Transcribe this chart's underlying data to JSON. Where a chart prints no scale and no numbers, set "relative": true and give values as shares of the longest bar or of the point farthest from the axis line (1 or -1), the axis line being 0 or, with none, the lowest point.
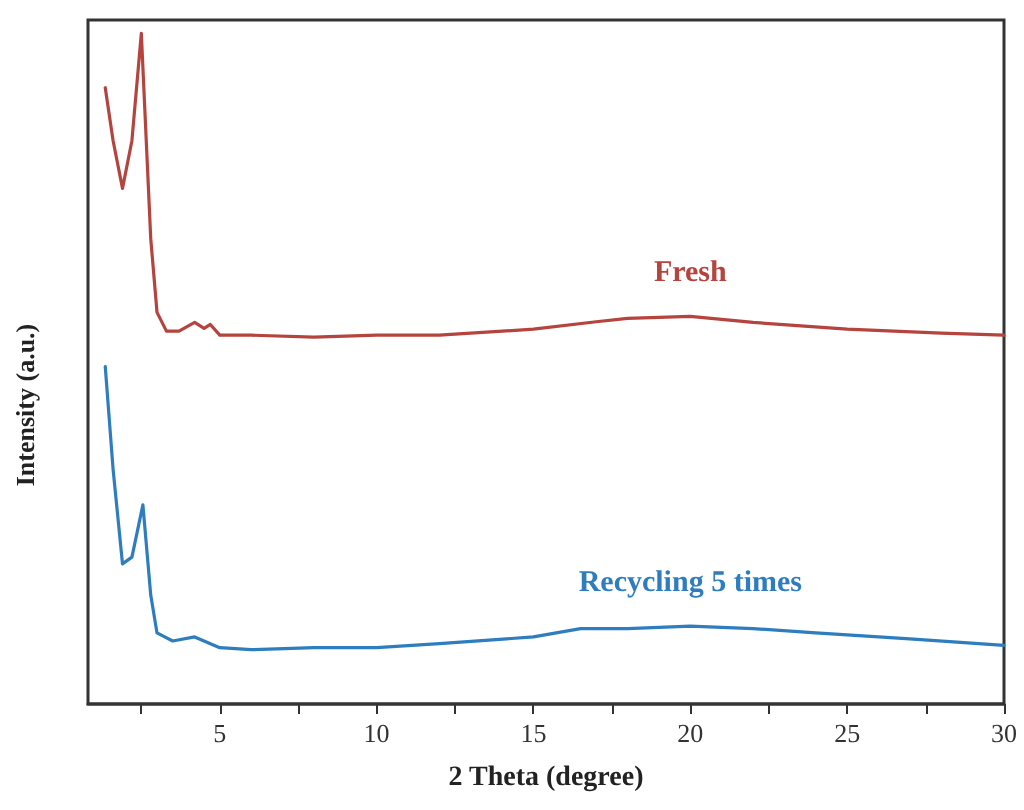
{
  "chart_data": {
    "type": "line",
    "xlabel": "2 Theta (degree)",
    "ylabel": "Intensity (a.u.)",
    "relative": true,
    "xlim": [
      0.8,
      30
    ],
    "xticks": [
      {
        "value": 2.5,
        "label": null
      },
      5,
      {
        "value": 7.5,
        "label": null
      },
      10,
      {
        "value": 12.5,
        "label": null
      },
      15,
      {
        "value": 17.5,
        "label": null
      },
      20,
      {
        "value": 22.5,
        "label": null
      },
      25,
      {
        "value": 27.5,
        "label": null
      },
      30
    ],
    "grid": false,
    "legend": false,
    "marker": "none",
    "line_style": "solid",
    "series": [
      {
        "name": "Fresh",
        "color": "#b5443f",
        "x": [
          1.35,
          1.6,
          1.9,
          2.2,
          2.5,
          2.8,
          3,
          3.3,
          3.7,
          4.2,
          4.5,
          4.7,
          5,
          6,
          8,
          10,
          12,
          15,
          17,
          18,
          20,
          22,
          25,
          28,
          30
        ],
        "values": [
          0.919,
          0.84,
          0.769,
          0.84,
          1.0,
          0.694,
          0.584,
          0.556,
          0.556,
          0.569,
          0.56,
          0.566,
          0.55,
          0.55,
          0.547,
          0.55,
          0.55,
          0.559,
          0.57,
          0.575,
          0.578,
          0.569,
          0.559,
          0.553,
          0.55
        ]
      },
      {
        "name": "Recycling 5 times",
        "color": "#2e7dbf",
        "x": [
          1.35,
          1.6,
          1.9,
          2.2,
          2.55,
          2.8,
          3,
          3.5,
          4.2,
          5,
          6,
          8,
          10,
          12,
          15,
          16.5,
          18,
          20,
          22,
          24,
          27,
          30
        ],
        "values": [
          0.503,
          0.35,
          0.209,
          0.219,
          0.297,
          0.1625,
          0.106,
          0.094,
          0.1,
          0.084,
          0.081,
          0.084,
          0.084,
          0.09,
          0.1,
          0.1125,
          0.1125,
          0.116,
          0.1125,
          0.106,
          0.097,
          0.0875
        ]
      }
    ]
  }
}
